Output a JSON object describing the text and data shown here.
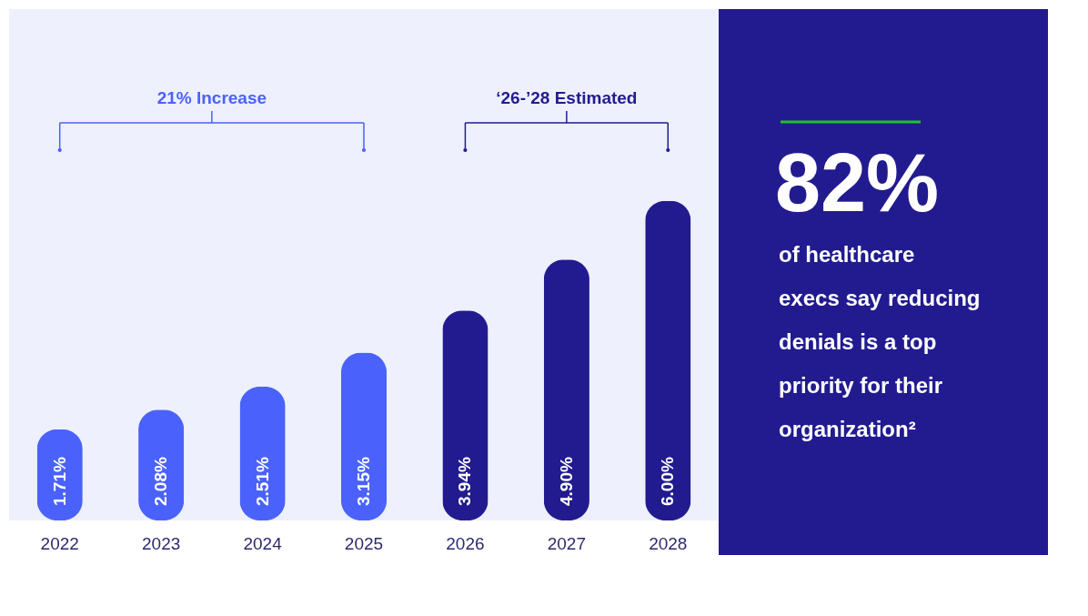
{
  "chart_data": {
    "type": "bar",
    "categories": [
      "2022",
      "2023",
      "2024",
      "2025",
      "2026",
      "2027",
      "2028"
    ],
    "values": [
      1.71,
      2.08,
      2.51,
      3.15,
      3.94,
      4.9,
      6.0
    ],
    "colors": [
      "#4a62fb",
      "#4a62fb",
      "#4a62fb",
      "#4a62fb",
      "#221b8f",
      "#221b8f",
      "#221b8f"
    ],
    "value_labels": [
      "1.71%",
      "2.08%",
      "2.51%",
      "3.15%",
      "3.94%",
      "4.90%",
      "6.00%"
    ],
    "annotations": [
      "21% Increase",
      "‘26-’28 Estimated",
      "82%",
      "of healthcare execs say reducing denials is a top priority for their organization²"
    ],
    "grid": false
  }
}
